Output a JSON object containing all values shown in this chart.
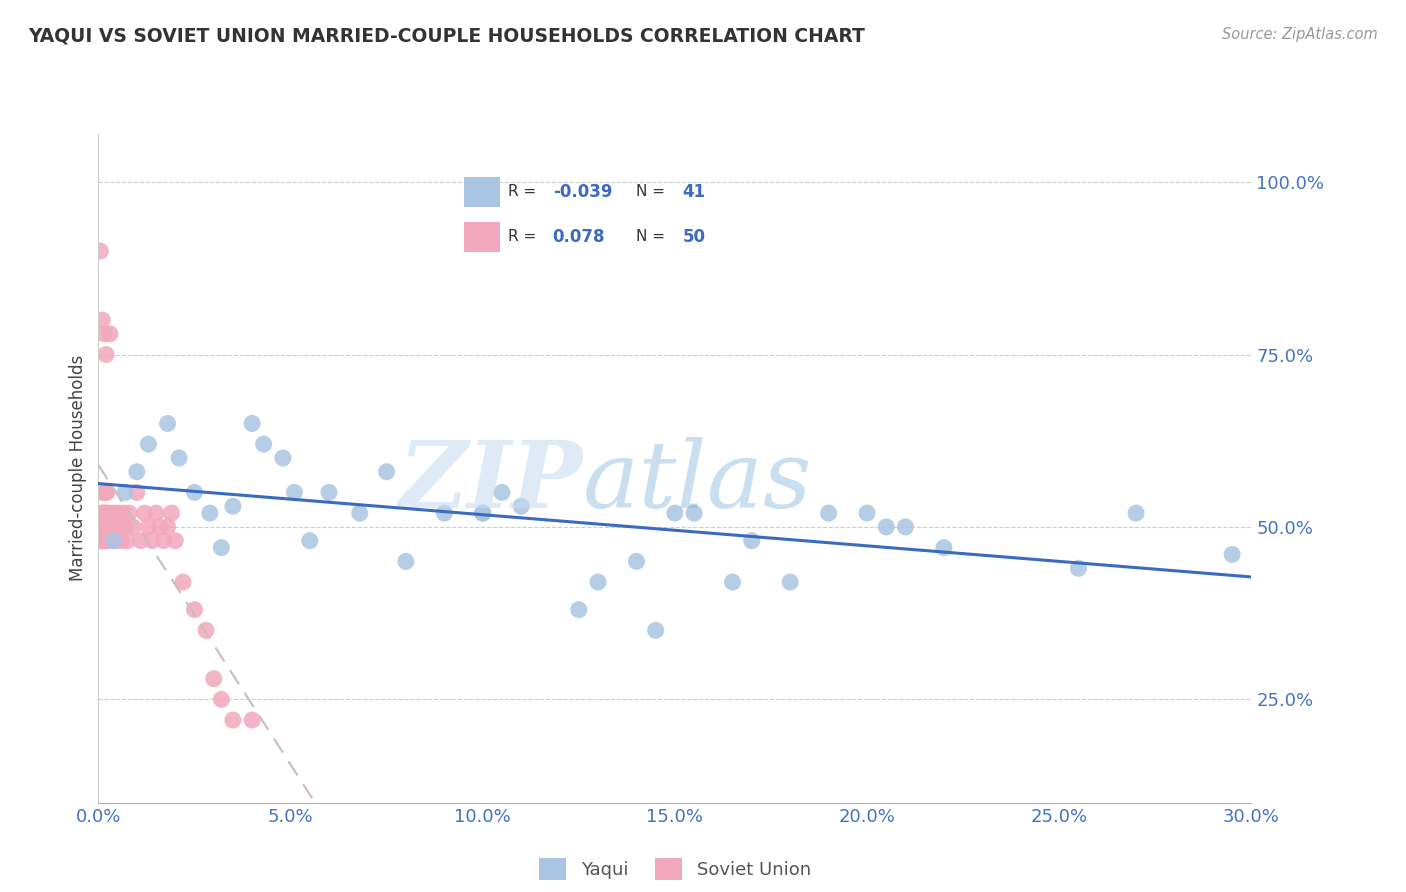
{
  "title": "YAQUI VS SOVIET UNION MARRIED-COUPLE HOUSEHOLDS CORRELATION CHART",
  "source": "Source: ZipAtlas.com",
  "xlim": [
    0.0,
    30.0
  ],
  "ylim": [
    10.0,
    107.0
  ],
  "ylabel": "Married-couple Households",
  "yaqui_R": -0.039,
  "yaqui_N": 41,
  "soviet_R": 0.078,
  "soviet_N": 50,
  "yaqui_color": "#aac5e2",
  "soviet_color": "#f2a8bc",
  "yaqui_line_color": "#3a6bbf",
  "soviet_line_color": "#d4a0a8",
  "watermark_zip": "ZIP",
  "watermark_atlas": "atlas",
  "x_ticks": [
    0,
    5,
    10,
    15,
    20,
    25,
    30
  ],
  "x_tick_labels": [
    "0.0%",
    "5.0%",
    "10.0%",
    "15.0%",
    "20.0%",
    "25.0%",
    "30.0%"
  ],
  "y_ticks": [
    25,
    50,
    75,
    100
  ],
  "y_tick_labels": [
    "25.0%",
    "50.0%",
    "75.0%",
    "100.0%"
  ],
  "yaqui_x": [
    0.4,
    0.7,
    1.0,
    1.3,
    1.8,
    2.1,
    2.5,
    2.9,
    3.2,
    3.5,
    4.0,
    4.3,
    4.8,
    5.1,
    5.5,
    6.0,
    6.8,
    7.5,
    8.0,
    9.0,
    10.0,
    10.5,
    11.0,
    12.5,
    13.0,
    14.0,
    15.5,
    16.5,
    17.0,
    18.0,
    19.0,
    20.0,
    21.0,
    22.0,
    25.5,
    27.0,
    29.5,
    10.0,
    14.5,
    15.0,
    20.5
  ],
  "yaqui_y": [
    48.0,
    55.0,
    58.0,
    62.0,
    65.0,
    60.0,
    55.0,
    52.0,
    47.0,
    53.0,
    65.0,
    62.0,
    60.0,
    55.0,
    48.0,
    55.0,
    52.0,
    58.0,
    45.0,
    52.0,
    52.0,
    55.0,
    53.0,
    38.0,
    42.0,
    45.0,
    52.0,
    42.0,
    48.0,
    42.0,
    52.0,
    52.0,
    50.0,
    47.0,
    44.0,
    52.0,
    46.0,
    52.0,
    35.0,
    52.0,
    50.0
  ],
  "soviet_x": [
    0.05,
    0.08,
    0.08,
    0.1,
    0.1,
    0.12,
    0.12,
    0.15,
    0.15,
    0.18,
    0.18,
    0.2,
    0.2,
    0.22,
    0.25,
    0.28,
    0.3,
    0.35,
    0.4,
    0.45,
    0.5,
    0.55,
    0.6,
    0.65,
    0.7,
    0.75,
    0.8,
    0.9,
    1.0,
    1.1,
    1.2,
    1.3,
    1.4,
    1.5,
    1.6,
    1.7,
    1.8,
    1.9,
    2.0,
    2.2,
    2.5,
    2.8,
    3.0,
    3.2,
    3.5,
    4.0,
    0.05,
    0.1,
    0.15,
    0.2
  ],
  "soviet_y": [
    50.0,
    52.0,
    48.0,
    55.0,
    50.0,
    52.0,
    48.0,
    52.0,
    50.0,
    55.0,
    48.0,
    52.0,
    50.0,
    55.0,
    48.0,
    52.0,
    78.0,
    50.0,
    52.0,
    48.0,
    52.0,
    50.0,
    48.0,
    52.0,
    50.0,
    48.0,
    52.0,
    50.0,
    55.0,
    48.0,
    52.0,
    50.0,
    48.0,
    52.0,
    50.0,
    48.0,
    50.0,
    52.0,
    48.0,
    42.0,
    38.0,
    35.0,
    28.0,
    25.0,
    22.0,
    22.0,
    90.0,
    80.0,
    78.0,
    75.0
  ]
}
